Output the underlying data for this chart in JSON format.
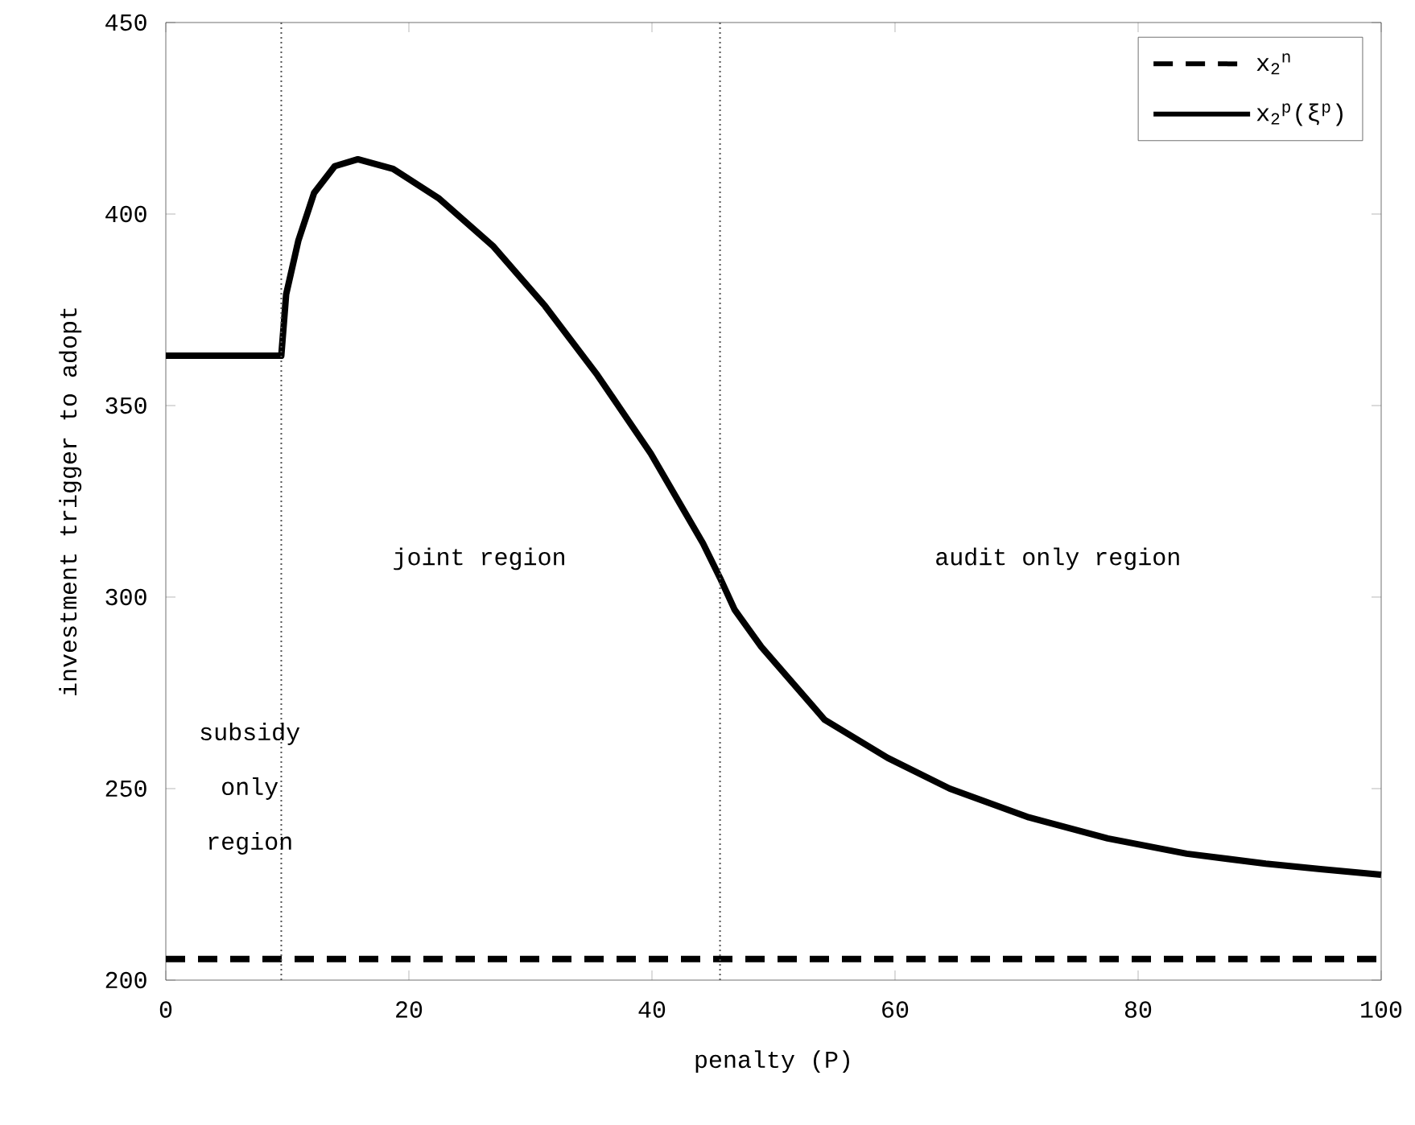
{
  "chart_data": {
    "type": "line",
    "xlabel": "penalty (P)",
    "ylabel": "investment trigger to adopt",
    "xlim": [
      0,
      100
    ],
    "ylim": [
      200,
      450
    ],
    "xticks": [
      0,
      20,
      40,
      60,
      80,
      100
    ],
    "yticks": [
      200,
      250,
      300,
      350,
      400,
      450
    ],
    "grid": false,
    "legend": "top right",
    "series": [
      {
        "name": "x$_{2}$$^{n}$",
        "color": "#000000",
        "line_style": "dashed",
        "x": [
          0,
          100
        ],
        "values": [
          205.5,
          205.5
        ]
      },
      {
        "name": "x$_{2}$$^{p}$(ξ$^{p}$)",
        "color": "#000000",
        "line_style": "solid",
        "x": [
          0,
          9.5,
          9.9,
          10.9,
          12.2,
          13.9,
          15.8,
          18.7,
          22.5,
          26.9,
          31.2,
          35.5,
          39.9,
          44.2,
          45.6,
          46.8,
          49,
          54.2,
          59.4,
          64.5,
          71,
          77.5,
          84,
          90.5,
          95,
          100
        ],
        "values": [
          363,
          363,
          379,
          393,
          405.5,
          412.5,
          414.3,
          411.8,
          404,
          391.7,
          376,
          358,
          337.5,
          314,
          305,
          296.7,
          287,
          268,
          258,
          250,
          242.5,
          237,
          233,
          230.4,
          229,
          227.5
        ]
      }
    ],
    "ref_lines": [
      {
        "axis": "x",
        "value": 9.5,
        "color": "#555555",
        "line_style": "dotted"
      },
      {
        "axis": "x",
        "value": 45.6,
        "color": "#555555",
        "line_style": "dotted"
      }
    ],
    "annotations": [
      "joint region",
      "audit only region",
      "subsidy only region"
    ]
  }
}
